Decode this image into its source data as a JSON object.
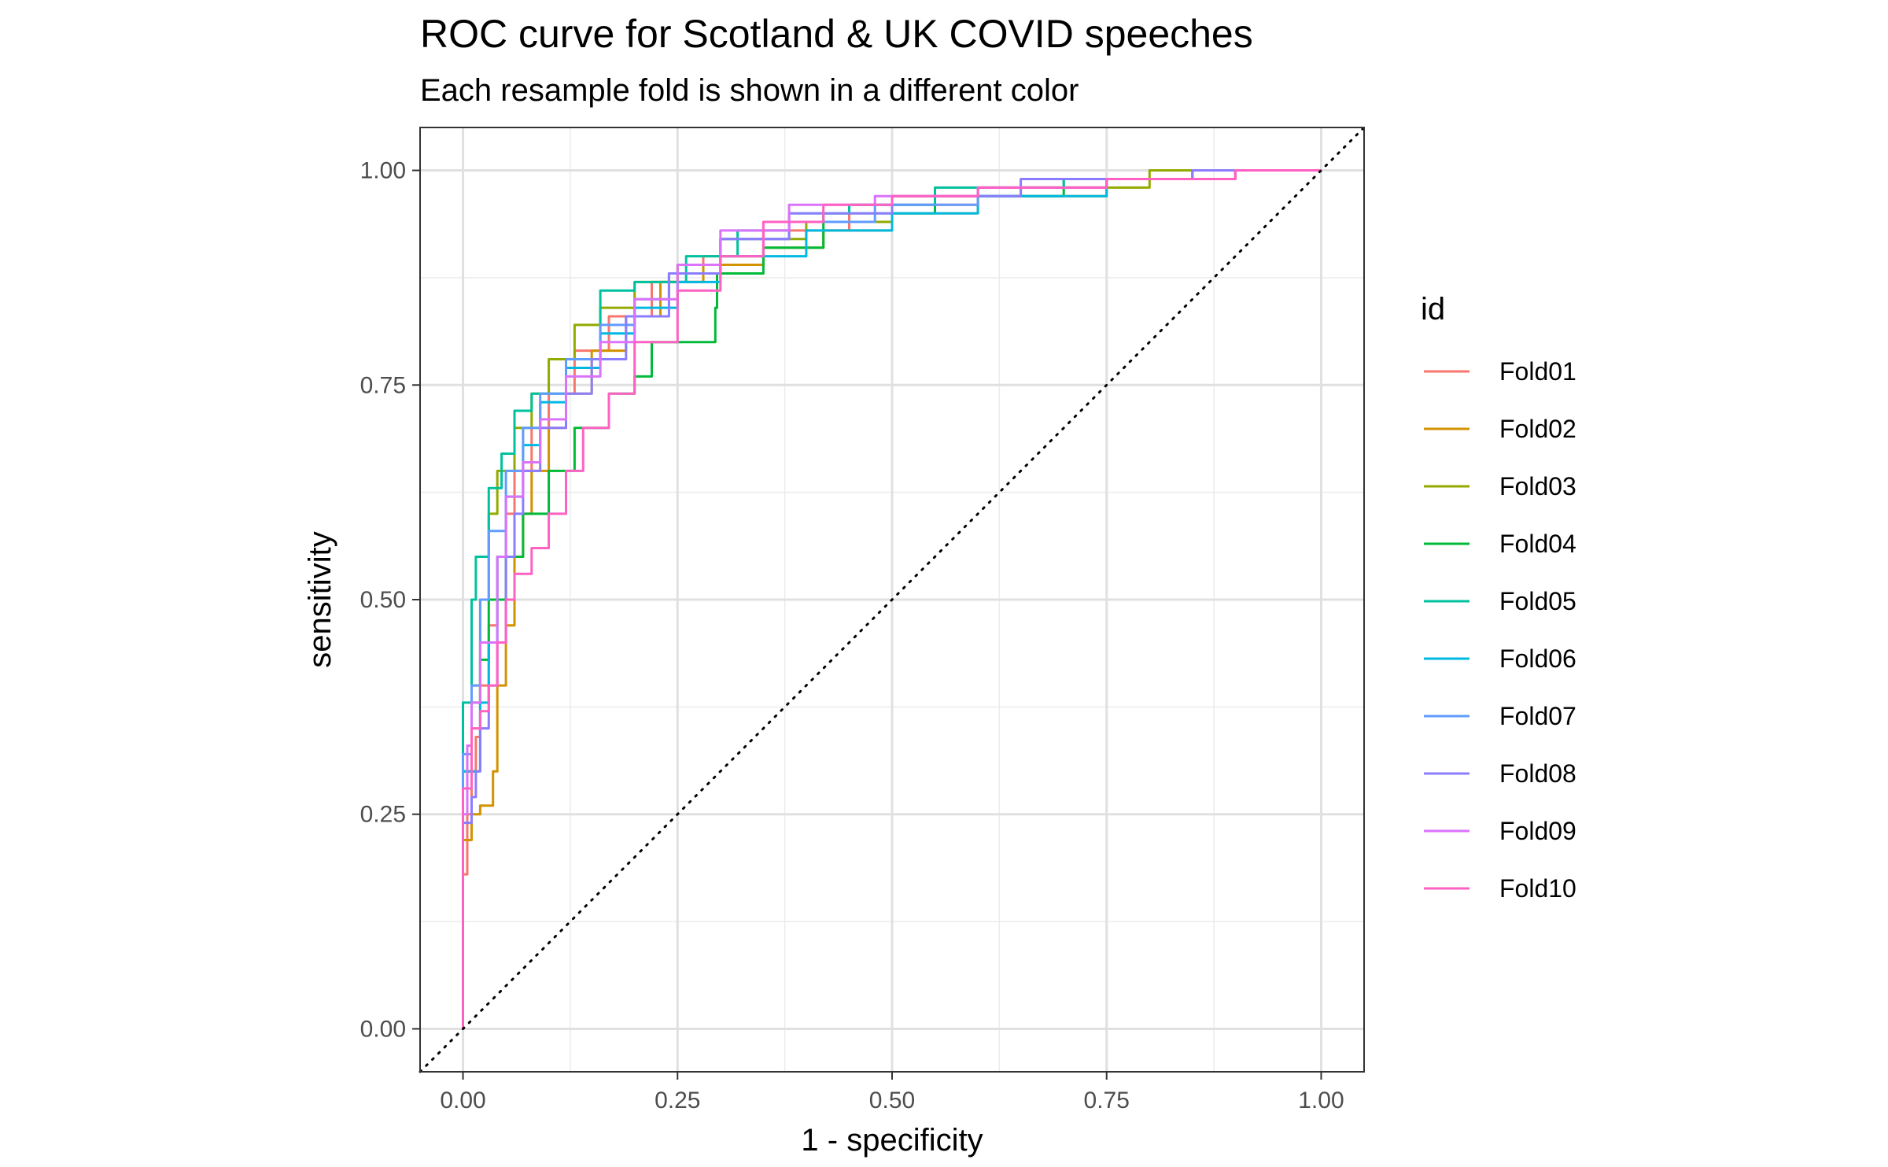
{
  "chart_data": {
    "type": "line",
    "title": "ROC curve for Scotland & UK COVID speeches",
    "subtitle": "Each resample fold is shown in a different color",
    "xlabel": "1 - specificity",
    "ylabel": "sensitivity",
    "xlim": [
      -0.05,
      1.05
    ],
    "ylim": [
      -0.05,
      1.05
    ],
    "x_ticks": [
      0,
      0.25,
      0.5,
      0.75,
      1
    ],
    "y_ticks": [
      0,
      0.25,
      0.5,
      0.75,
      1
    ],
    "x_tick_labels": [
      "0.00",
      "0.25",
      "0.50",
      "0.75",
      "1.00"
    ],
    "y_tick_labels": [
      "0.00",
      "0.25",
      "0.50",
      "0.75",
      "1.00"
    ],
    "grid": true,
    "legend": {
      "title": "id",
      "position": "right"
    },
    "reference_line": {
      "style": "dotted",
      "color": "#000000",
      "points": [
        [
          -0.05,
          -0.05
        ],
        [
          1.05,
          1.05
        ]
      ]
    },
    "series": [
      {
        "name": "Fold01",
        "color": "#F8766D",
        "points": [
          [
            0,
            0
          ],
          [
            0,
            0.12
          ],
          [
            0.005,
            0.18
          ],
          [
            0.01,
            0.25
          ],
          [
            0.015,
            0.3
          ],
          [
            0.02,
            0.34
          ],
          [
            0.03,
            0.4
          ],
          [
            0.04,
            0.47
          ],
          [
            0.05,
            0.55
          ],
          [
            0.06,
            0.6
          ],
          [
            0.08,
            0.65
          ],
          [
            0.1,
            0.7
          ],
          [
            0.13,
            0.74
          ],
          [
            0.17,
            0.79
          ],
          [
            0.22,
            0.83
          ],
          [
            0.28,
            0.87
          ],
          [
            0.35,
            0.9
          ],
          [
            0.45,
            0.93
          ],
          [
            0.6,
            0.96
          ],
          [
            0.75,
            0.98
          ],
          [
            0.9,
            0.99
          ],
          [
            1,
            1
          ]
        ]
      },
      {
        "name": "Fold02",
        "color": "#D39200",
        "points": [
          [
            0,
            0
          ],
          [
            0,
            0.15
          ],
          [
            0.01,
            0.22
          ],
          [
            0.02,
            0.25
          ],
          [
            0.035,
            0.26
          ],
          [
            0.04,
            0.3
          ],
          [
            0.05,
            0.4
          ],
          [
            0.06,
            0.47
          ],
          [
            0.07,
            0.55
          ],
          [
            0.08,
            0.6
          ],
          [
            0.1,
            0.65
          ],
          [
            0.12,
            0.7
          ],
          [
            0.15,
            0.74
          ],
          [
            0.19,
            0.79
          ],
          [
            0.23,
            0.83
          ],
          [
            0.28,
            0.87
          ],
          [
            0.35,
            0.89
          ],
          [
            0.42,
            0.91
          ],
          [
            0.5,
            0.93
          ],
          [
            0.6,
            0.95
          ],
          [
            0.75,
            0.97
          ],
          [
            0.9,
            0.99
          ],
          [
            1,
            1
          ]
        ]
      },
      {
        "name": "Fold03",
        "color": "#93AA00",
        "points": [
          [
            0,
            0
          ],
          [
            0,
            0.2
          ],
          [
            0.01,
            0.3
          ],
          [
            0.02,
            0.4
          ],
          [
            0.03,
            0.5
          ],
          [
            0.04,
            0.6
          ],
          [
            0.06,
            0.65
          ],
          [
            0.08,
            0.7
          ],
          [
            0.1,
            0.74
          ],
          [
            0.13,
            0.78
          ],
          [
            0.16,
            0.82
          ],
          [
            0.2,
            0.84
          ],
          [
            0.25,
            0.87
          ],
          [
            0.3,
            0.89
          ],
          [
            0.4,
            0.92
          ],
          [
            0.5,
            0.94
          ],
          [
            0.65,
            0.97
          ],
          [
            0.8,
            0.98
          ],
          [
            1,
            1
          ]
        ]
      },
      {
        "name": "Fold04",
        "color": "#00BA38",
        "points": [
          [
            0,
            0
          ],
          [
            0,
            0.2
          ],
          [
            0.01,
            0.3
          ],
          [
            0.02,
            0.38
          ],
          [
            0.03,
            0.43
          ],
          [
            0.05,
            0.5
          ],
          [
            0.07,
            0.55
          ],
          [
            0.1,
            0.6
          ],
          [
            0.13,
            0.65
          ],
          [
            0.17,
            0.7
          ],
          [
            0.2,
            0.74
          ],
          [
            0.22,
            0.76
          ],
          [
            0.294,
            0.8
          ],
          [
            0.296,
            0.84
          ],
          [
            0.35,
            0.88
          ],
          [
            0.42,
            0.91
          ],
          [
            0.55,
            0.95
          ],
          [
            0.7,
            0.97
          ],
          [
            0.85,
            0.99
          ],
          [
            1,
            1
          ]
        ]
      },
      {
        "name": "Fold05",
        "color": "#00C19F",
        "points": [
          [
            0,
            0
          ],
          [
            0,
            0.25
          ],
          [
            0.01,
            0.38
          ],
          [
            0.015,
            0.5
          ],
          [
            0.03,
            0.55
          ],
          [
            0.045,
            0.63
          ],
          [
            0.06,
            0.67
          ],
          [
            0.08,
            0.72
          ],
          [
            0.12,
            0.74
          ],
          [
            0.16,
            0.78
          ],
          [
            0.2,
            0.86
          ],
          [
            0.26,
            0.87
          ],
          [
            0.32,
            0.9
          ],
          [
            0.38,
            0.93
          ],
          [
            0.45,
            0.95
          ],
          [
            0.55,
            0.96
          ],
          [
            0.7,
            0.98
          ],
          [
            0.85,
            0.99
          ],
          [
            1,
            1
          ]
        ]
      },
      {
        "name": "Fold06",
        "color": "#00B9E3",
        "points": [
          [
            0,
            0
          ],
          [
            0,
            0.25
          ],
          [
            0.02,
            0.3
          ],
          [
            0.03,
            0.38
          ],
          [
            0.04,
            0.45
          ],
          [
            0.05,
            0.55
          ],
          [
            0.07,
            0.62
          ],
          [
            0.09,
            0.68
          ],
          [
            0.12,
            0.73
          ],
          [
            0.16,
            0.77
          ],
          [
            0.2,
            0.81
          ],
          [
            0.25,
            0.84
          ],
          [
            0.3,
            0.87
          ],
          [
            0.4,
            0.9
          ],
          [
            0.5,
            0.93
          ],
          [
            0.6,
            0.95
          ],
          [
            0.75,
            0.97
          ],
          [
            0.9,
            0.99
          ],
          [
            1,
            1
          ]
        ]
      },
      {
        "name": "Fold07",
        "color": "#619CFF",
        "points": [
          [
            0,
            0
          ],
          [
            0,
            0.2
          ],
          [
            0.01,
            0.32
          ],
          [
            0.02,
            0.4
          ],
          [
            0.03,
            0.5
          ],
          [
            0.05,
            0.58
          ],
          [
            0.07,
            0.65
          ],
          [
            0.09,
            0.7
          ],
          [
            0.12,
            0.74
          ],
          [
            0.16,
            0.78
          ],
          [
            0.2,
            0.82
          ],
          [
            0.24,
            0.85
          ],
          [
            0.3,
            0.88
          ],
          [
            0.38,
            0.92
          ],
          [
            0.48,
            0.94
          ],
          [
            0.6,
            0.96
          ],
          [
            0.75,
            0.98
          ],
          [
            0.9,
            0.99
          ],
          [
            1,
            1
          ]
        ]
      },
      {
        "name": "Fold08",
        "color": "#8B7DFF",
        "points": [
          [
            0,
            0
          ],
          [
            0,
            0.15
          ],
          [
            0.01,
            0.24
          ],
          [
            0.015,
            0.27
          ],
          [
            0.02,
            0.3
          ],
          [
            0.03,
            0.35
          ],
          [
            0.04,
            0.4
          ],
          [
            0.05,
            0.45
          ],
          [
            0.06,
            0.55
          ],
          [
            0.07,
            0.6
          ],
          [
            0.09,
            0.65
          ],
          [
            0.12,
            0.7
          ],
          [
            0.15,
            0.74
          ],
          [
            0.19,
            0.78
          ],
          [
            0.24,
            0.83
          ],
          [
            0.3,
            0.88
          ],
          [
            0.38,
            0.92
          ],
          [
            0.5,
            0.95
          ],
          [
            0.65,
            0.97
          ],
          [
            0.85,
            0.99
          ],
          [
            1,
            1
          ]
        ]
      },
      {
        "name": "Fold09",
        "color": "#DB72FB",
        "points": [
          [
            0,
            0
          ],
          [
            0,
            0.15
          ],
          [
            0.005,
            0.25
          ],
          [
            0.01,
            0.33
          ],
          [
            0.02,
            0.38
          ],
          [
            0.04,
            0.45
          ],
          [
            0.05,
            0.55
          ],
          [
            0.07,
            0.62
          ],
          [
            0.09,
            0.66
          ],
          [
            0.12,
            0.71
          ],
          [
            0.16,
            0.76
          ],
          [
            0.2,
            0.8
          ],
          [
            0.25,
            0.85
          ],
          [
            0.3,
            0.89
          ],
          [
            0.38,
            0.93
          ],
          [
            0.48,
            0.96
          ],
          [
            0.6,
            0.97
          ],
          [
            0.75,
            0.98
          ],
          [
            0.9,
            0.99
          ],
          [
            1,
            1
          ]
        ]
      },
      {
        "name": "Fold10",
        "color": "#FF61C3",
        "points": [
          [
            0,
            0
          ],
          [
            0,
            0.15
          ],
          [
            0.01,
            0.28
          ],
          [
            0.02,
            0.35
          ],
          [
            0.03,
            0.37
          ],
          [
            0.04,
            0.4
          ],
          [
            0.05,
            0.45
          ],
          [
            0.06,
            0.5
          ],
          [
            0.08,
            0.53
          ],
          [
            0.1,
            0.56
          ],
          [
            0.12,
            0.6
          ],
          [
            0.14,
            0.65
          ],
          [
            0.17,
            0.7
          ],
          [
            0.2,
            0.74
          ],
          [
            0.25,
            0.8
          ],
          [
            0.3,
            0.86
          ],
          [
            0.35,
            0.9
          ],
          [
            0.42,
            0.94
          ],
          [
            0.5,
            0.96
          ],
          [
            0.6,
            0.97
          ],
          [
            0.75,
            0.98
          ],
          [
            0.9,
            0.99
          ],
          [
            1,
            1
          ]
        ]
      }
    ]
  }
}
